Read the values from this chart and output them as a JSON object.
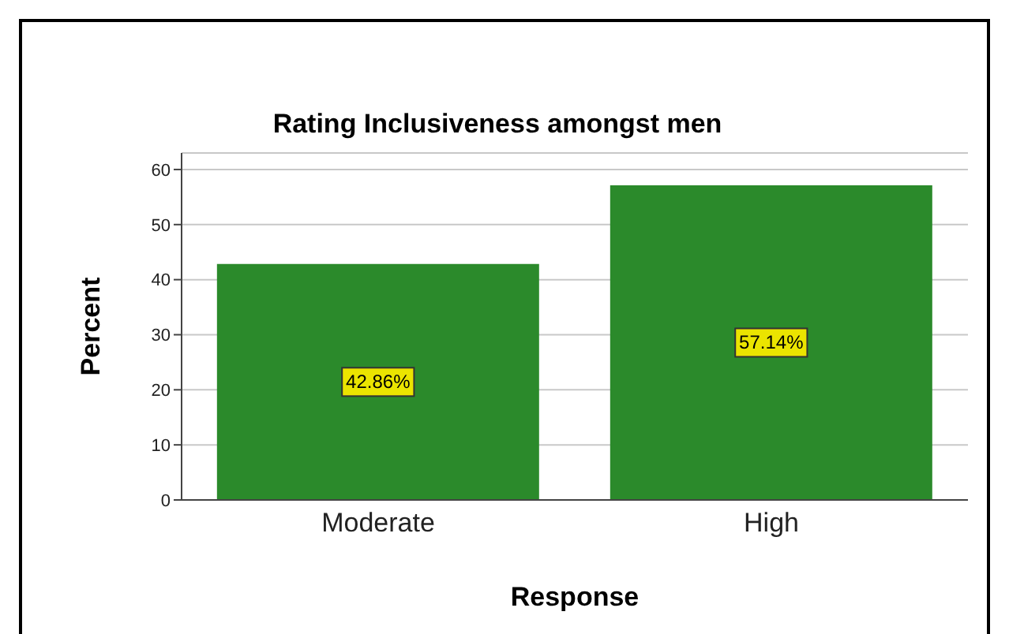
{
  "chart_data": {
    "type": "bar",
    "title": "Rating Inclusiveness amongst men",
    "xlabel": "Response",
    "ylabel": "Percent",
    "categories": [
      "Moderate",
      "High"
    ],
    "values": [
      42.86,
      57.14
    ],
    "value_labels": [
      "42.86%",
      "57.14%"
    ],
    "color": "#2b8a2b",
    "ylim": [
      0,
      63
    ],
    "yticks": [
      0,
      10,
      20,
      30,
      40,
      50,
      60
    ],
    "grid": "y"
  }
}
